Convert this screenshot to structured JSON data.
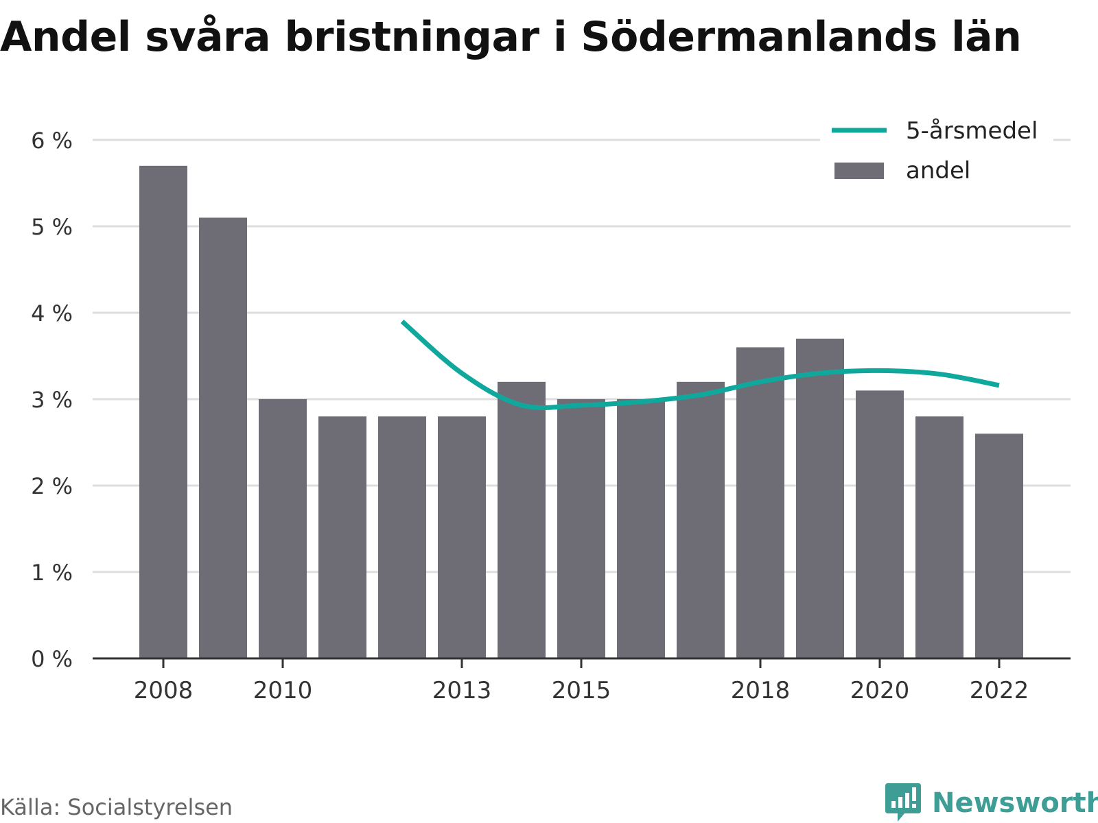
{
  "title": "Andel svåra bristningar i Södermanlands län",
  "source": "Källa: Socialstyrelsen",
  "brand": {
    "name": "Newsworthy",
    "icon": "newsworthy-logo-icon",
    "color": "#3e9d94"
  },
  "colors": {
    "bar": "#6e6d75",
    "line": "#10a89c",
    "grid": "#dddddd",
    "axis": "#333333"
  },
  "chart_data": {
    "type": "bar",
    "title": "Andel svåra bristningar i Södermanlands län",
    "xlabel": "",
    "ylabel": "",
    "ylim": [
      0,
      6
    ],
    "y_ticks": [
      0,
      1,
      2,
      3,
      4,
      5,
      6
    ],
    "y_tick_labels": [
      "0 %",
      "1 %",
      "2 %",
      "3 %",
      "4 %",
      "5 %",
      "6 %"
    ],
    "x_ticks": [
      2008,
      2010,
      2013,
      2015,
      2018,
      2020,
      2022
    ],
    "grid": true,
    "legend_position": "top-right",
    "categories": [
      2008,
      2009,
      2010,
      2011,
      2012,
      2013,
      2014,
      2015,
      2016,
      2017,
      2018,
      2019,
      2020,
      2021,
      2022
    ],
    "series": [
      {
        "name": "andel",
        "type": "bar",
        "values": [
          5.7,
          5.1,
          3.0,
          2.8,
          2.8,
          2.8,
          3.2,
          3.0,
          3.0,
          3.2,
          3.6,
          3.7,
          3.1,
          2.8,
          2.6
        ]
      },
      {
        "name": "5-årsmedel",
        "type": "line",
        "x": [
          2012,
          2013,
          2014,
          2015,
          2016,
          2017,
          2018,
          2019,
          2020,
          2021,
          2022
        ],
        "values": [
          3.9,
          3.3,
          2.93,
          2.93,
          2.97,
          3.05,
          3.2,
          3.3,
          3.33,
          3.29,
          3.16
        ]
      }
    ]
  }
}
